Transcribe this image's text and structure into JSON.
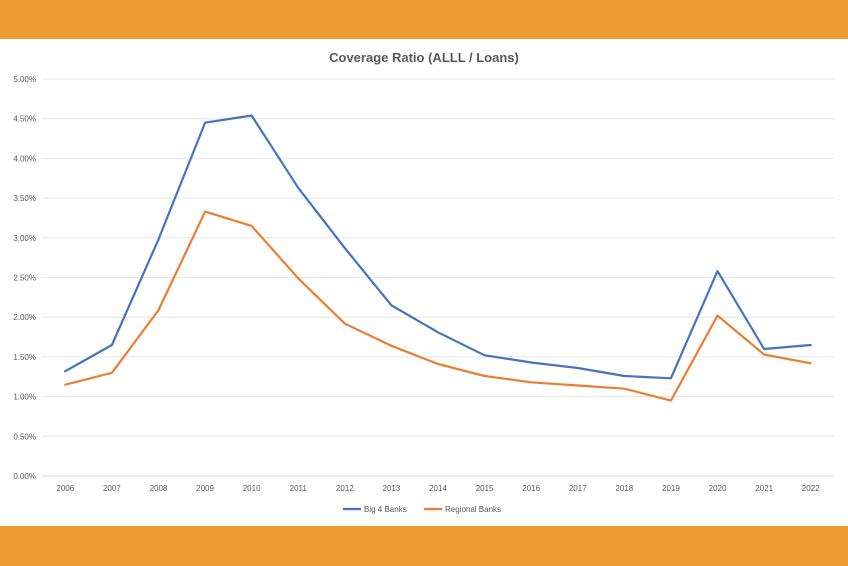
{
  "chart_data": {
    "type": "line",
    "title": "Coverage Ratio (ALLL / Loans)",
    "xlabel": "",
    "ylabel": "",
    "x": [
      "2006",
      "2007",
      "2008",
      "2009",
      "2010",
      "2011",
      "2012",
      "2013",
      "2014",
      "2015",
      "2016",
      "2017",
      "2018",
      "2019",
      "2020",
      "2021",
      "2022"
    ],
    "y_ticks": [
      "0.00%",
      "0.50%",
      "1.00%",
      "1.50%",
      "2.00%",
      "2.50%",
      "3.00%",
      "3.50%",
      "4.00%",
      "4.50%",
      "5.00%"
    ],
    "ylim": [
      0,
      5
    ],
    "grid": true,
    "legend_position": "bottom",
    "series": [
      {
        "name": "Big 4 Banks",
        "color": "#4472c4",
        "values": [
          1.32,
          1.65,
          2.98,
          4.45,
          4.54,
          3.63,
          2.87,
          2.15,
          1.81,
          1.52,
          1.43,
          1.36,
          1.26,
          1.23,
          2.58,
          1.6,
          1.65
        ]
      },
      {
        "name": "Regional Banks",
        "color": "#ed7d31",
        "values": [
          1.15,
          1.3,
          2.09,
          3.33,
          3.15,
          2.49,
          1.92,
          1.64,
          1.41,
          1.26,
          1.18,
          1.14,
          1.1,
          0.95,
          2.02,
          1.53,
          1.42
        ]
      }
    ]
  }
}
